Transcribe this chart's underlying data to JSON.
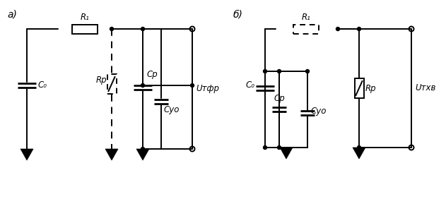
{
  "bg_color": "#ffffff",
  "fig_width": 6.31,
  "fig_height": 2.89,
  "label_a": "a)",
  "label_b": "б)",
  "label_R1_a": "R₁",
  "label_Rp_a": "Rр",
  "label_C0_a": "C₀",
  "label_Cp_a": "Cр",
  "label_Cuo_a": "Cуо",
  "label_Utfr_a": "Uтфр",
  "label_R1_b": "R₁",
  "label_Rp_b": "Rр",
  "label_C0_b": "C₀",
  "label_Cp_b": "Cр",
  "label_Cuo_b": "Cуо",
  "label_Utxb_b": "Uтxв"
}
